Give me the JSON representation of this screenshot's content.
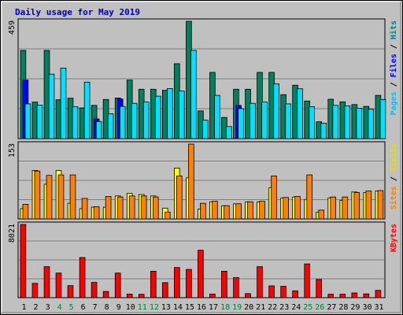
{
  "chart_data": {
    "type": "bar",
    "title": "Daily usage for May 2019",
    "categories": [
      "1",
      "2",
      "3",
      "4",
      "5",
      "6",
      "7",
      "8",
      "9",
      "10",
      "11",
      "12",
      "13",
      "14",
      "15",
      "16",
      "17",
      "18",
      "19",
      "20",
      "21",
      "22",
      "23",
      "24",
      "25",
      "26",
      "27",
      "28",
      "29",
      "30",
      "31"
    ],
    "weekend_days": [
      "4",
      "5",
      "11",
      "12",
      "18",
      "19",
      "25",
      "26"
    ],
    "panels": [
      {
        "id": "top",
        "max_label": "459",
        "ymax": 459,
        "side_labels": [
          {
            "text": "Pages",
            "color": "#00c0ff"
          },
          {
            "text": " / ",
            "color": "#000000"
          },
          {
            "text": "Files",
            "color": "#0000ff"
          },
          {
            "text": " / ",
            "color": "#000000"
          },
          {
            "text": "Hits",
            "color": "#008080"
          }
        ],
        "series": [
          {
            "name": "Hits",
            "color": "#00805c",
            "values": [
              345,
              143,
              345,
              152,
              158,
              120,
              130,
              153,
              159,
              229,
              193,
              193,
              189,
              293,
              459,
              108,
              259,
              83,
              193,
              193,
              259,
              259,
              172,
              209,
              147,
              66,
              154,
              144,
              133,
              126,
              169
            ]
          },
          {
            "name": "Files",
            "color": "#0000ff",
            "values": [
              229,
              0,
              0,
              0,
              0,
              0,
              77,
              0,
              155,
              0,
              0,
              0,
              0,
              0,
              0,
              0,
              0,
              0,
              130,
              0,
              0,
              0,
              0,
              0,
              0,
              0,
              0,
              0,
              0,
              0,
              0
            ]
          },
          {
            "name": "Pages",
            "color": "#00e0ff",
            "values": [
              136,
              131,
              252,
              276,
              125,
              221,
              67,
              97,
              126,
              138,
              143,
              166,
              196,
              186,
              345,
              72,
              169,
              47,
              117,
              138,
              143,
              214,
              136,
              195,
              125,
              60,
              130,
              128,
              119,
              115,
              153
            ]
          }
        ]
      },
      {
        "id": "middle",
        "max_label": "153",
        "ymax": 153,
        "side_labels": [
          {
            "text": "Sites",
            "color": "#ff8000"
          },
          {
            "text": " / ",
            "color": "#000000"
          },
          {
            "text": "Visits",
            "color": "#e0e000"
          }
        ],
        "series": [
          {
            "name": "Visits",
            "color": "#ffff00",
            "values": [
              21,
              99,
              71,
              99,
              32,
              21,
              24,
              24,
              47,
              52,
              50,
              47,
              22,
              104,
              84,
              20,
              35,
              27,
              31,
              35,
              35,
              64,
              43,
              45,
              40,
              14,
              43,
              38,
              55,
              54,
              57
            ]
          },
          {
            "name": "Sites",
            "color": "#ff8000",
            "values": [
              30,
              98,
              89,
              90,
              90,
              42,
              25,
              46,
              45,
              47,
              47,
              45,
              14,
              88,
              153,
              32,
              36,
              27,
              31,
              35,
              36,
              88,
              44,
              46,
              90,
              18,
              45,
              45,
              54,
              57,
              58
            ]
          }
        ]
      },
      {
        "id": "bottom",
        "max_label": "8021",
        "ymax": 8021,
        "side_labels": [
          {
            "text": "KBytes",
            "color": "#ff0000"
          }
        ],
        "series": [
          {
            "name": "KBytes",
            "color": "#ff0000",
            "values": [
              8021,
              1570,
              3400,
              2700,
              1320,
              4400,
              1670,
              680,
              2700,
              400,
              370,
              2900,
              1650,
              3300,
              3100,
              5200,
              400,
              2900,
              2200,
              450,
              3400,
              1290,
              1250,
              750,
              3700,
              1990,
              380,
              380,
              520,
              410,
              800
            ]
          }
        ]
      }
    ]
  }
}
